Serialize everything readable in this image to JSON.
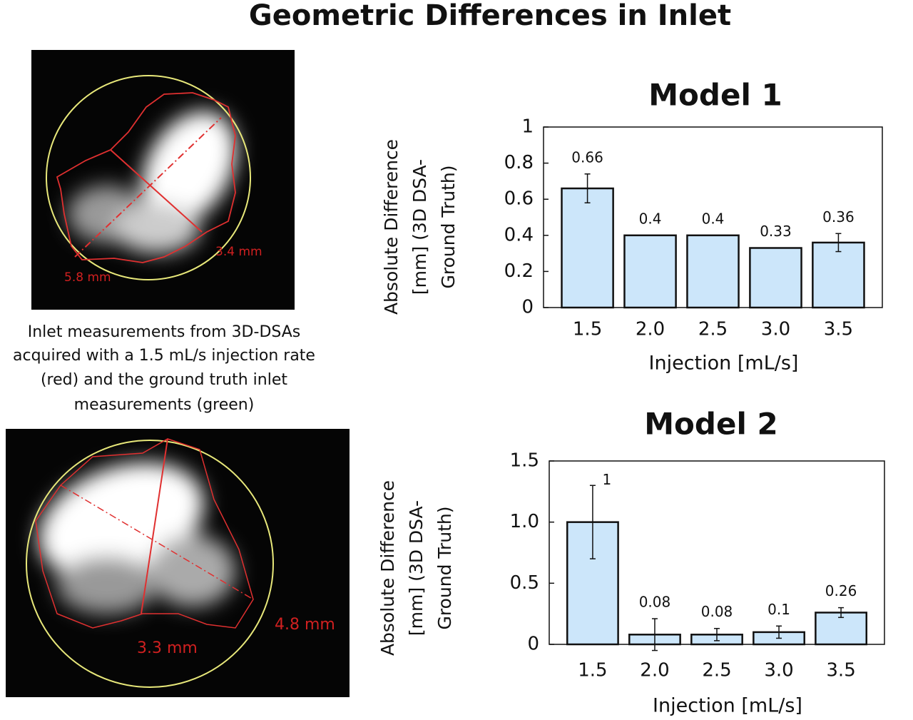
{
  "title": "Geometric Differences in Inlet",
  "caption": [
    "Inlet measurements from 3D-DSAs",
    "acquired with a 1.5 mL/s injection rate",
    "(red) and the ground truth inlet",
    "measurements (green)"
  ],
  "images": [
    {
      "labels": [
        "5.8 mm",
        "3.4 mm"
      ]
    },
    {
      "labels": [
        "3.3 mm",
        "4.8 mm"
      ]
    }
  ],
  "chart_data": [
    {
      "type": "bar",
      "title": "Model 1",
      "categories": [
        "1.5",
        "2.0",
        "2.5",
        "3.0",
        "3.5"
      ],
      "values": [
        0.66,
        0.4,
        0.4,
        0.33,
        0.36
      ],
      "errors": [
        0.08,
        0,
        0,
        0,
        0.05
      ],
      "color": "#cce6fa",
      "xlabel": "Injection [mL/s]",
      "ylabel": [
        "Absolute Difference",
        "[mm]  (3D DSA-",
        "Ground Truth)"
      ],
      "ylim": [
        0,
        1
      ],
      "yticks": [
        0,
        0.2,
        0.4,
        0.6,
        0.8,
        1
      ]
    },
    {
      "type": "bar",
      "title": "Model 2",
      "categories": [
        "1.5",
        "2.0",
        "2.5",
        "3.0",
        "3.5"
      ],
      "values": [
        1,
        0.08,
        0.08,
        0.1,
        0.26
      ],
      "errors": [
        0.3,
        0.13,
        0.05,
        0.05,
        0.04
      ],
      "color": "#cce6fa",
      "xlabel": "Injection [mL/s]",
      "ylabel": [
        "Absolute Difference",
        "[mm]  (3D DSA-",
        "Ground Truth)"
      ],
      "ylim": [
        0,
        1.5
      ],
      "yticks": [
        0,
        0.5,
        {
          "value": 1,
          "label": "1.0"
        },
        1.5
      ]
    }
  ]
}
